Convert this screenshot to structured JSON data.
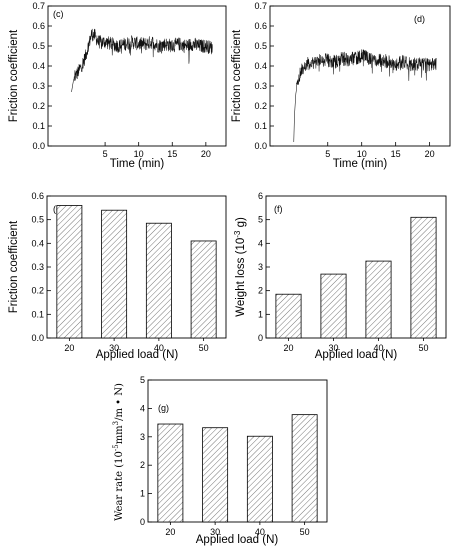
{
  "chart_data": [
    {
      "id": "c",
      "type": "line",
      "panel_label": "(c)",
      "xlabel": "Time (min)",
      "ylabel": "Friction coefficient",
      "xlim": [
        -3.5,
        23
      ],
      "ylim": [
        0.0,
        0.7
      ],
      "xticks": [
        5,
        10,
        15,
        20
      ],
      "yticks": [
        0.0,
        0.1,
        0.2,
        0.3,
        0.4,
        0.5,
        0.6,
        0.7
      ],
      "ytick_labels": [
        "0.0",
        "0.1",
        "0.2",
        "0.3",
        "0.4",
        "0.5",
        "0.6",
        "0.7"
      ],
      "series": [
        {
          "x": [
            0.0,
            0.3,
            0.6,
            1.0,
            1.5,
            2.0,
            2.5,
            3.0,
            3.5,
            4.0,
            5.0,
            6.0,
            7.0,
            8.0,
            9.0,
            10.0,
            11.0,
            12.0,
            13.0,
            14.0,
            15.0,
            16.0,
            17.0,
            18.0,
            19.0,
            20.0,
            21.0
          ],
          "y": [
            0.27,
            0.33,
            0.35,
            0.37,
            0.4,
            0.44,
            0.5,
            0.56,
            0.55,
            0.52,
            0.52,
            0.51,
            0.5,
            0.51,
            0.52,
            0.51,
            0.51,
            0.52,
            0.5,
            0.51,
            0.5,
            0.51,
            0.5,
            0.51,
            0.5,
            0.5,
            0.49
          ]
        }
      ]
    },
    {
      "id": "d",
      "type": "line",
      "panel_label": "(d)",
      "xlabel": "Time (min)",
      "ylabel": "Friction coefficient",
      "xlim": [
        -3.5,
        23
      ],
      "ylim": [
        0.0,
        0.7
      ],
      "xticks": [
        5,
        10,
        15,
        20
      ],
      "yticks": [
        0.0,
        0.1,
        0.2,
        0.3,
        0.4,
        0.5,
        0.6,
        0.7
      ],
      "ytick_labels": [
        "0.0",
        "0.1",
        "0.2",
        "0.3",
        "0.4",
        "0.5",
        "0.6",
        "0.7"
      ],
      "series": [
        {
          "x": [
            0.0,
            0.1,
            0.3,
            0.6,
            1.0,
            1.5,
            2.0,
            3.0,
            4.0,
            5.0,
            6.0,
            7.0,
            8.0,
            9.0,
            10.0,
            11.0,
            12.0,
            13.0,
            14.0,
            15.0,
            16.0,
            17.0,
            18.0,
            19.0,
            20.0,
            21.0
          ],
          "y": [
            0.02,
            0.15,
            0.26,
            0.33,
            0.37,
            0.4,
            0.41,
            0.42,
            0.43,
            0.43,
            0.42,
            0.44,
            0.43,
            0.44,
            0.45,
            0.44,
            0.43,
            0.43,
            0.42,
            0.41,
            0.42,
            0.41,
            0.41,
            0.41,
            0.42,
            0.41
          ]
        }
      ]
    },
    {
      "id": "e",
      "type": "bar",
      "panel_label": "(e)",
      "xlabel": "Applied load (N)",
      "ylabel": "Friction coefficient",
      "categories": [
        "20",
        "30",
        "40",
        "50"
      ],
      "values": [
        0.56,
        0.54,
        0.485,
        0.41
      ],
      "ylim": [
        0.0,
        0.6
      ],
      "yticks": [
        0.0,
        0.1,
        0.2,
        0.3,
        0.4,
        0.5,
        0.6
      ],
      "ytick_labels": [
        "0.0",
        "0.1",
        "0.2",
        "0.3",
        "0.4",
        "0.5",
        "0.6"
      ]
    },
    {
      "id": "f",
      "type": "bar",
      "panel_label": "(f)",
      "xlabel": "Applied load (N)",
      "ylabel_main": "Weight loss (10",
      "ylabel_sup": "-3",
      "ylabel_tail": " g)",
      "categories": [
        "20",
        "30",
        "40",
        "50"
      ],
      "values": [
        1.85,
        2.7,
        3.25,
        5.1
      ],
      "ylim": [
        0,
        6
      ],
      "yticks": [
        0,
        1,
        2,
        3,
        4,
        5,
        6
      ],
      "ytick_labels": [
        "0",
        "1",
        "2",
        "3",
        "4",
        "5",
        "6"
      ]
    },
    {
      "id": "g",
      "type": "bar",
      "panel_label": "(g)",
      "xlabel": "Applied load (N)",
      "ylabel_main": "Wear rate (10",
      "ylabel_sup": "-5",
      "ylabel_mid": "mm",
      "ylabel_sup2": "3",
      "ylabel_tail": "/m • N)",
      "categories": [
        "20",
        "30",
        "40",
        "50"
      ],
      "values": [
        3.45,
        3.32,
        3.02,
        3.78
      ],
      "ylim": [
        0,
        5
      ],
      "yticks": [
        0,
        1,
        2,
        3,
        4,
        5
      ],
      "ytick_labels": [
        "0",
        "1",
        "2",
        "3",
        "4",
        "5"
      ]
    }
  ]
}
